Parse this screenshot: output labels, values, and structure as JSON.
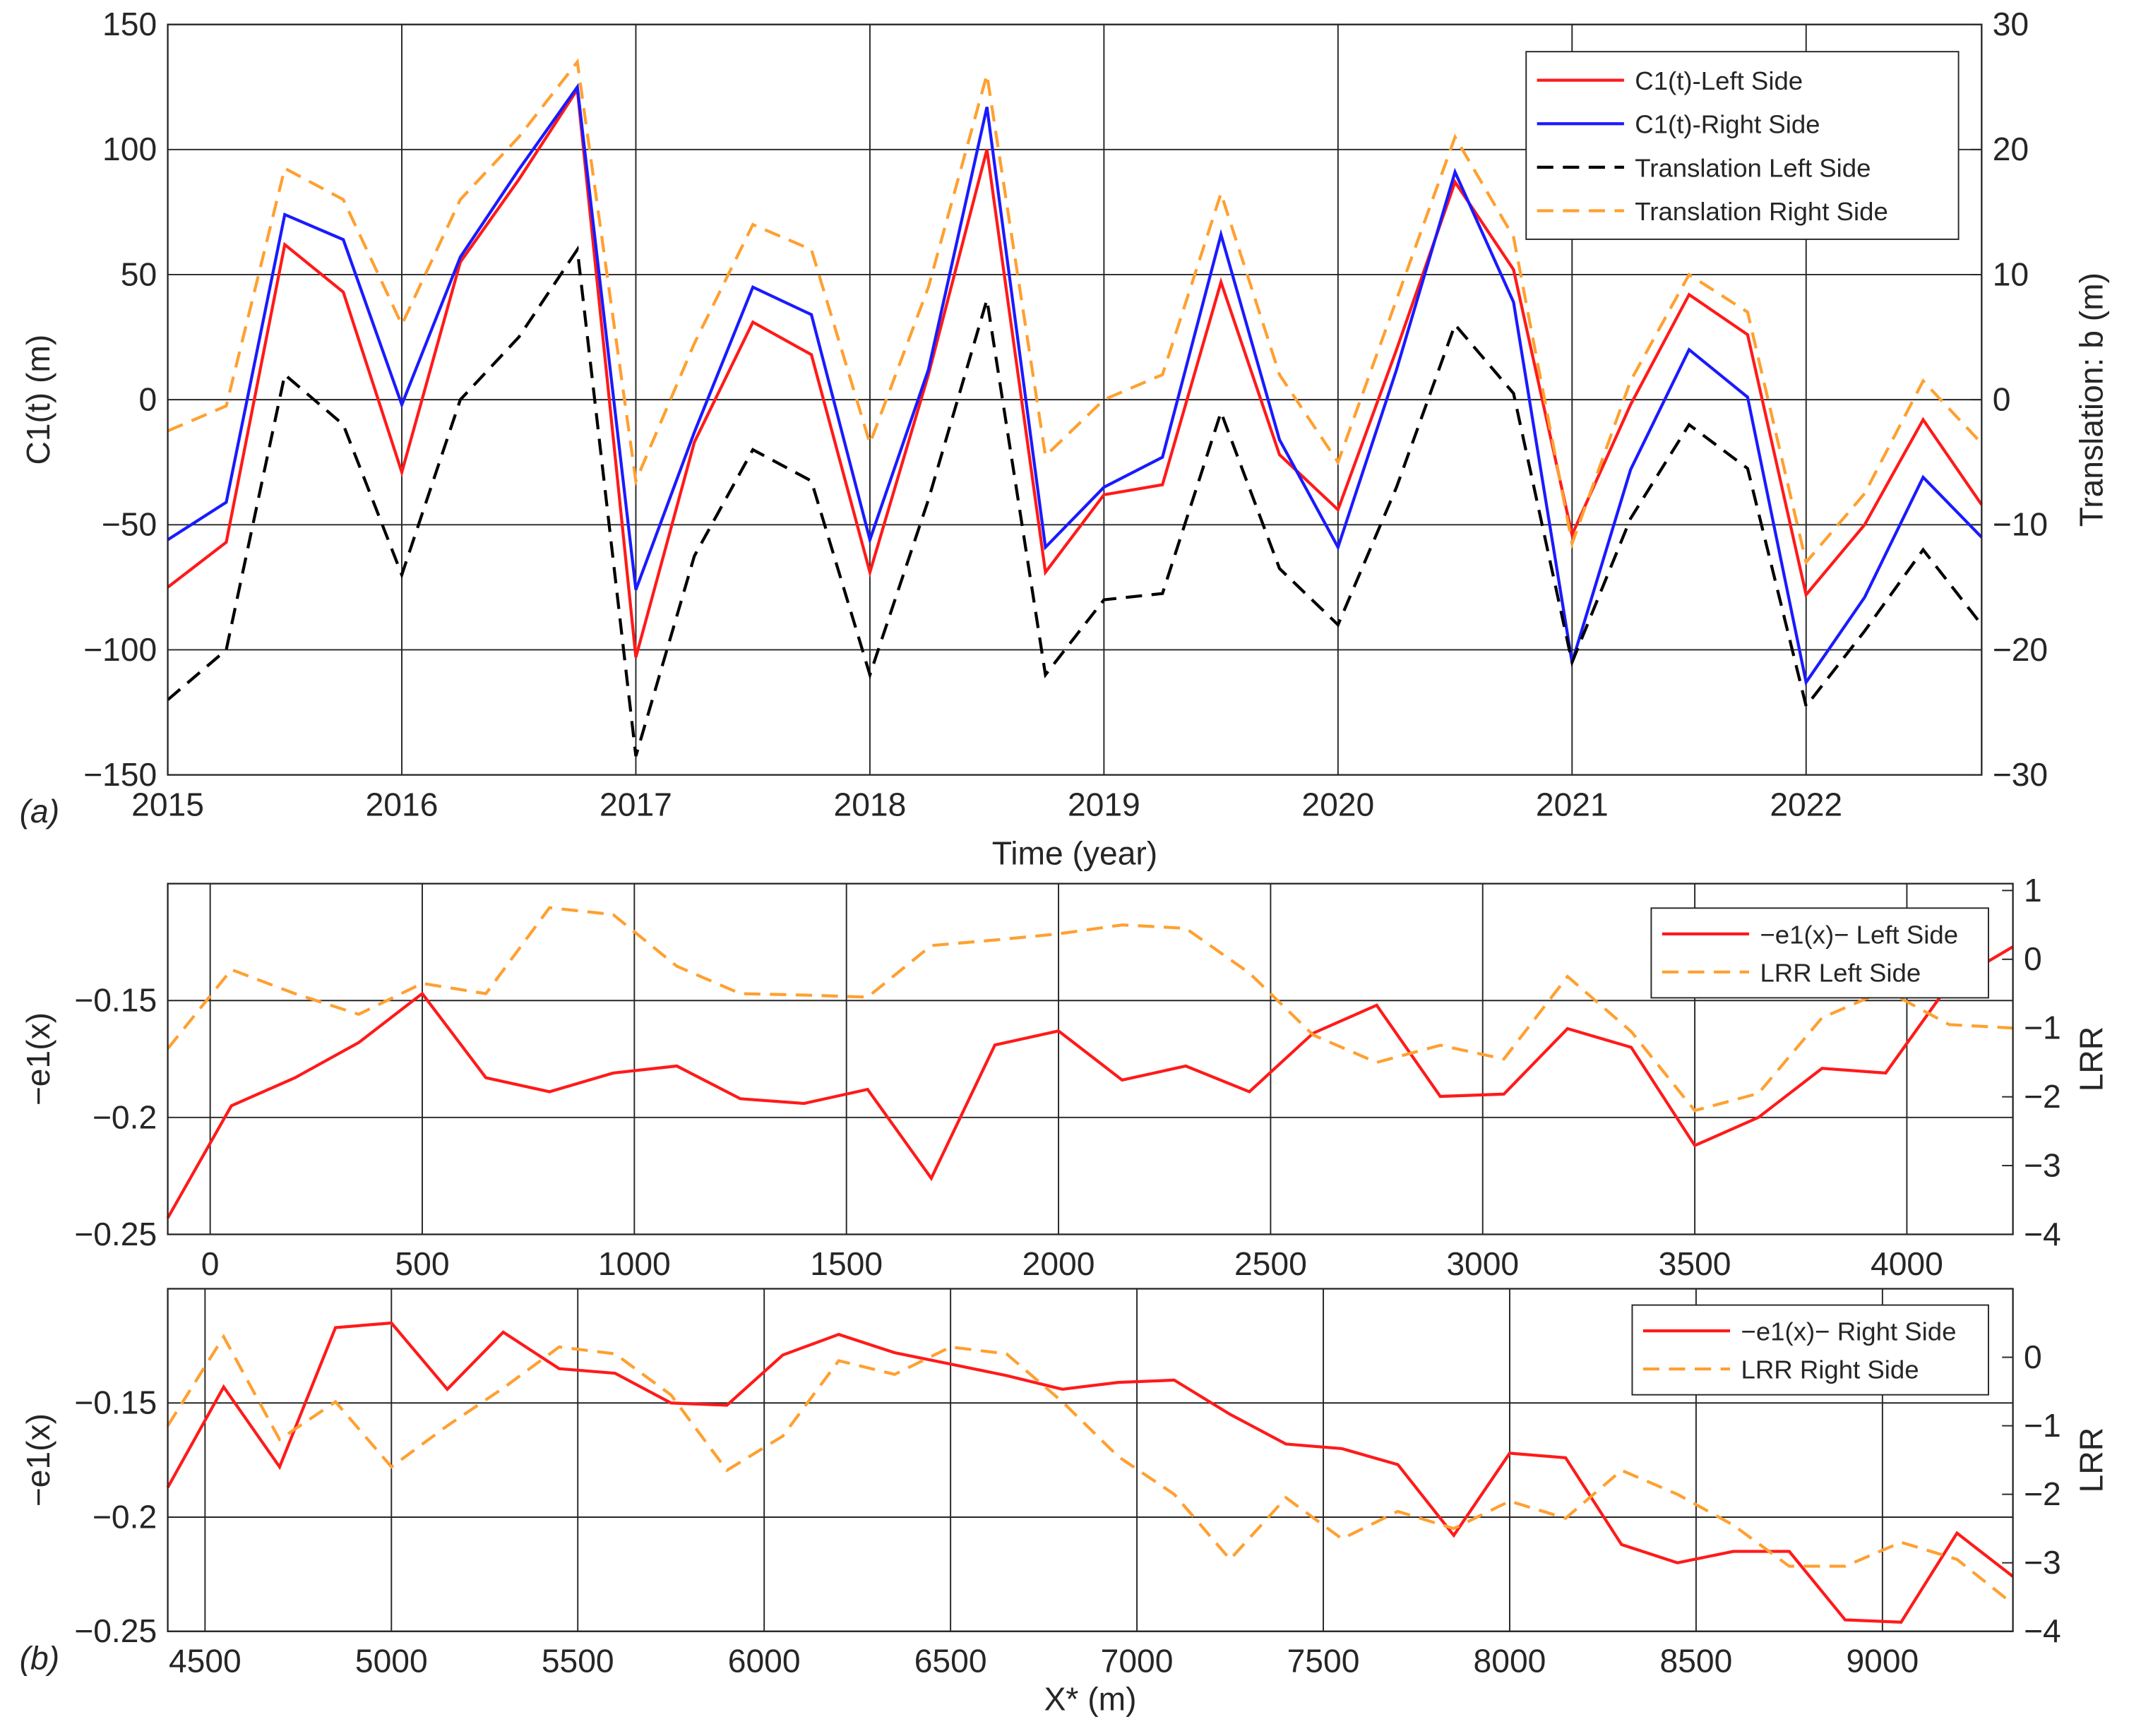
{
  "chart_data": [
    {
      "type": "line",
      "x_label": "Time (year)",
      "y_label": "C1(t) (m)",
      "y2_label": "Translation: b (m)",
      "annotation": "(a)",
      "grid": true,
      "legend_position": "upper right",
      "x": [
        2015,
        2015.25,
        2015.5,
        2015.75,
        2016,
        2016.25,
        2016.5,
        2016.75,
        2017,
        2017.25,
        2017.5,
        2017.75,
        2018,
        2018.25,
        2018.5,
        2018.75,
        2019,
        2019.25,
        2019.5,
        2019.75,
        2020,
        2020.25,
        2020.5,
        2020.75,
        2021,
        2021.25,
        2021.5,
        2021.75,
        2022,
        2022.25,
        2022.5,
        2022.75
      ],
      "xlim": [
        2015,
        2022.75
      ],
      "xticks": [
        2015,
        2016,
        2017,
        2018,
        2019,
        2020,
        2021,
        2022
      ],
      "ylim": [
        -150,
        150
      ],
      "yticks": [
        {
          "value": -150,
          "label": "−150"
        },
        {
          "value": -100,
          "label": "−100"
        },
        {
          "value": -50,
          "label": "−50"
        },
        0,
        50,
        100,
        150
      ],
      "y2lim": [
        -30,
        30
      ],
      "y2ticks": [
        {
          "value": -30,
          "label": "−30"
        },
        {
          "value": -20,
          "label": "−20"
        },
        {
          "value": -10,
          "label": "−10"
        },
        0,
        10,
        20,
        30
      ],
      "series": [
        {
          "name": "C1(t)-Left Side",
          "color": "#ff1a1a",
          "dash": "solid",
          "values": [
            -75,
            -57,
            62,
            43,
            -29,
            55,
            88,
            124,
            -103,
            -17,
            31,
            18,
            -69,
            10,
            100,
            -69,
            -38,
            -34,
            47,
            -22,
            -44,
            20,
            87,
            52,
            -54,
            -2,
            42,
            26,
            -78,
            -50,
            -8,
            -42
          ]
        },
        {
          "name": "C1(t)-Right Side",
          "color": "#1a1aff",
          "dash": "solid",
          "values": [
            -56,
            -41,
            74,
            64,
            -2,
            57,
            92,
            125,
            -76,
            -13,
            45,
            34,
            -56,
            12,
            117,
            -59,
            -35,
            -23,
            66,
            -16,
            -59,
            12,
            91,
            39,
            -105,
            -28,
            20,
            1,
            -113,
            -79,
            -31,
            -55
          ]
        },
        {
          "name": "Translation Left Side",
          "color": "#000000",
          "dash": "dashed",
          "axis": "y2",
          "values": [
            -24,
            -20,
            2,
            -2,
            -14,
            0,
            5,
            12,
            -28.5,
            -12.5,
            -4,
            -6.5,
            -22,
            -8,
            8,
            -22,
            -16,
            -15.5,
            -1,
            -13.5,
            -18,
            -7,
            6,
            0.5,
            -21,
            -9.5,
            -2,
            -5.5,
            -24.5,
            -18.5,
            -12,
            -18
          ]
        },
        {
          "name": "Translation Right Side",
          "color": "#ffa030",
          "dash": "dashed",
          "axis": "y2",
          "values": [
            -2.5,
            -0.5,
            18.5,
            16,
            6,
            16,
            21,
            27,
            -6.5,
            4.5,
            14,
            12,
            -3.5,
            9,
            26,
            -4.5,
            0,
            2,
            16.5,
            2,
            -5,
            8,
            21,
            13,
            -11.5,
            1.5,
            10,
            7,
            -13,
            -7.5,
            1.5,
            -3.5
          ]
        }
      ]
    },
    {
      "type": "line",
      "y_label": "−e1(x)",
      "y2_label": "LRR",
      "grid": true,
      "legend_position": "upper right",
      "x": [
        -100,
        50,
        200,
        350,
        500,
        650,
        800,
        950,
        1100,
        1250,
        1400,
        1550,
        1700,
        1850,
        2000,
        2150,
        2300,
        2450,
        2600,
        2750,
        2900,
        3050,
        3200,
        3350,
        3500,
        3650,
        3800,
        3950,
        4100,
        4250
      ],
      "xlim": [
        -100,
        4250
      ],
      "xticks": [
        0,
        500,
        1000,
        1500,
        2000,
        2500,
        3000,
        3500,
        4000
      ],
      "ylim": [
        -0.25,
        -0.1
      ],
      "yticks": [
        {
          "value": -0.25,
          "label": "−0.25"
        },
        {
          "value": -0.2,
          "label": "−0.2"
        },
        {
          "value": -0.15,
          "label": "−0.15"
        }
      ],
      "y2lim": [
        -4,
        1.1
      ],
      "y2ticks": [
        {
          "value": -4,
          "label": "−4"
        },
        {
          "value": -3,
          "label": "−3"
        },
        {
          "value": -2,
          "label": "−2"
        },
        {
          "value": -1,
          "label": "−1"
        },
        0,
        1
      ],
      "series": [
        {
          "name": "−e1(x)− Left Side",
          "color": "#ff1a1a",
          "dash": "solid",
          "values": [
            -0.243,
            -0.195,
            -0.183,
            -0.168,
            -0.147,
            -0.183,
            -0.189,
            -0.181,
            -0.178,
            -0.192,
            -0.194,
            -0.188,
            -0.226,
            -0.169,
            -0.163,
            -0.184,
            -0.178,
            -0.189,
            -0.164,
            -0.152,
            -0.191,
            -0.19,
            -0.162,
            -0.17,
            -0.212,
            -0.2,
            -0.179,
            -0.181,
            -0.143,
            -0.127
          ]
        },
        {
          "name": "LRR Left Side",
          "color": "#ffa030",
          "dash": "dashed",
          "axis": "y2",
          "values": [
            -1.3,
            -0.15,
            -0.5,
            -0.8,
            -0.35,
            -0.5,
            0.75,
            0.65,
            -0.1,
            -0.5,
            -0.52,
            -0.55,
            0.2,
            0.28,
            0.37,
            0.5,
            0.45,
            -0.2,
            -1.1,
            -1.5,
            -1.25,
            -1.45,
            -0.25,
            -1.05,
            -2.2,
            -1.95,
            -0.85,
            -0.45,
            -0.95,
            -1
          ]
        }
      ]
    },
    {
      "type": "line",
      "x_label": "X* (m)",
      "y_label": "−e1(x)",
      "y2_label": "LRR",
      "annotation": "(b)",
      "grid": true,
      "legend_position": "upper right",
      "x": [
        4400,
        4550,
        4700,
        4850,
        5000,
        5150,
        5300,
        5450,
        5600,
        5750,
        5900,
        6050,
        6200,
        6350,
        6500,
        6650,
        6800,
        6950,
        7100,
        7250,
        7400,
        7550,
        7700,
        7850,
        8000,
        8150,
        8300,
        8450,
        8600,
        8750,
        8900,
        9050,
        9200,
        9350
      ],
      "xlim": [
        4400,
        9350
      ],
      "xticks": [
        4500,
        5000,
        5500,
        6000,
        6500,
        7000,
        7500,
        8000,
        8500,
        9000
      ],
      "ylim": [
        -0.25,
        -0.1
      ],
      "yticks": [
        {
          "value": -0.25,
          "label": "−0.25"
        },
        {
          "value": -0.2,
          "label": "−0.2"
        },
        {
          "value": -0.15,
          "label": "−0.15"
        }
      ],
      "y2lim": [
        -4,
        1
      ],
      "y2ticks": [
        {
          "value": -4,
          "label": "−4"
        },
        {
          "value": -3,
          "label": "−3"
        },
        {
          "value": -2,
          "label": "−2"
        },
        {
          "value": -1,
          "label": "−1"
        },
        0
      ],
      "series": [
        {
          "name": "−e1(x)− Right Side",
          "color": "#ff1a1a",
          "dash": "solid",
          "values": [
            -0.187,
            -0.143,
            -0.178,
            -0.117,
            -0.115,
            -0.144,
            -0.119,
            -0.135,
            -0.137,
            -0.15,
            -0.151,
            -0.129,
            -0.12,
            -0.128,
            -0.133,
            -0.138,
            -0.144,
            -0.141,
            -0.14,
            -0.155,
            -0.168,
            -0.17,
            -0.177,
            -0.208,
            -0.172,
            -0.174,
            -0.212,
            -0.22,
            -0.215,
            -0.215,
            -0.245,
            -0.246,
            -0.207,
            -0.226
          ]
        },
        {
          "name": "LRR Right Side",
          "color": "#ffa030",
          "dash": "dashed",
          "axis": "y2",
          "values": [
            -1,
            0.3,
            -1.2,
            -0.65,
            -1.6,
            -1,
            -0.45,
            0.15,
            0.05,
            -0.55,
            -1.65,
            -1.15,
            -0.05,
            -0.25,
            0.15,
            0.05,
            -0.65,
            -1.45,
            -2,
            -2.95,
            -2.05,
            -2.65,
            -2.25,
            -2.5,
            -2.1,
            -2.35,
            -1.65,
            -2,
            -2.45,
            -3.05,
            -3.05,
            -2.7,
            -2.95,
            -3.6
          ]
        }
      ]
    }
  ]
}
